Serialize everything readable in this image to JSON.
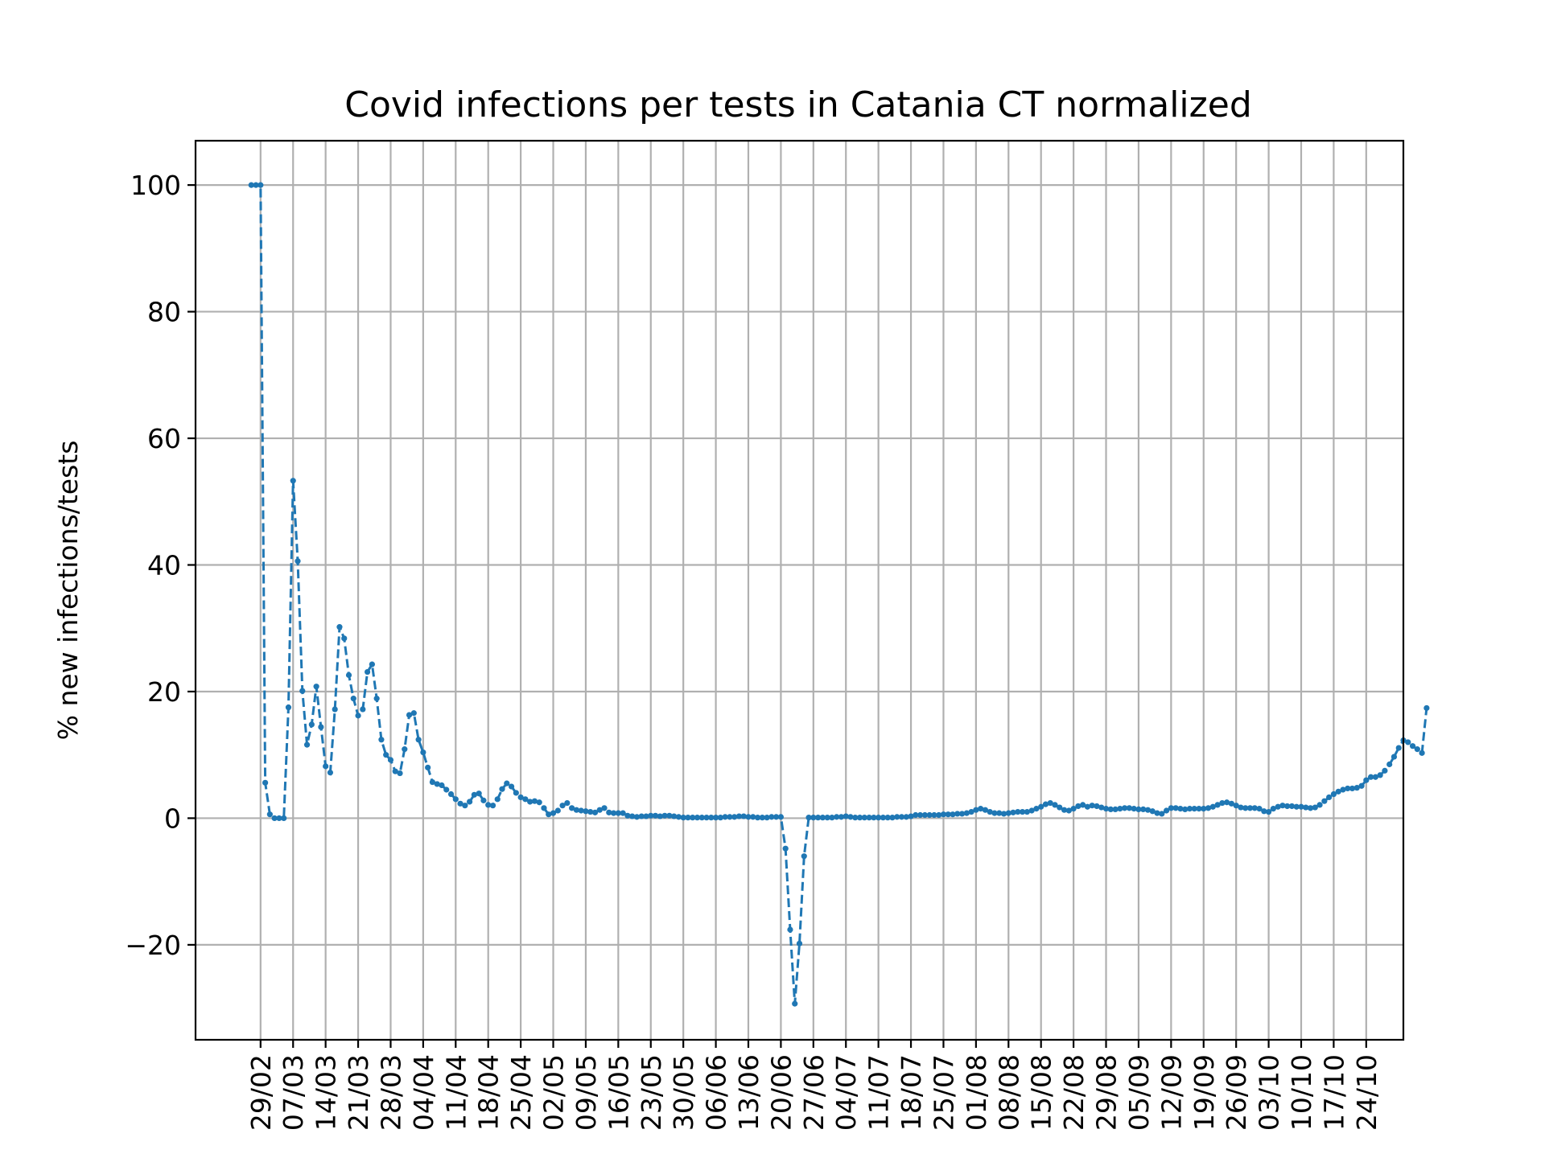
{
  "chart_data": {
    "type": "line",
    "title": "Covid infections per tests in Catania CT normalized",
    "xlabel": "",
    "ylabel": "% new infections/tests",
    "ylim": [
      -35,
      107
    ],
    "yticks": [
      -20,
      0,
      20,
      40,
      60,
      80,
      100
    ],
    "ytick_labels": [
      "−20",
      "0",
      "20",
      "40",
      "60",
      "80",
      "100"
    ],
    "xlim": [
      "2020-02-15",
      "2020-11-01"
    ],
    "xticks": [
      "2020-02-29",
      "2020-03-07",
      "2020-03-14",
      "2020-03-21",
      "2020-03-28",
      "2020-04-04",
      "2020-04-11",
      "2020-04-18",
      "2020-04-25",
      "2020-05-02",
      "2020-05-09",
      "2020-05-16",
      "2020-05-23",
      "2020-05-30",
      "2020-06-06",
      "2020-06-13",
      "2020-06-20",
      "2020-06-27",
      "2020-07-04",
      "2020-07-11",
      "2020-07-18",
      "2020-07-25",
      "2020-08-01",
      "2020-08-08",
      "2020-08-15",
      "2020-08-22",
      "2020-08-29",
      "2020-09-05",
      "2020-09-12",
      "2020-09-19",
      "2020-09-26",
      "2020-10-03",
      "2020-10-10",
      "2020-10-17",
      "2020-10-24"
    ],
    "xtick_labels": [
      "29/02",
      "07/03",
      "14/03",
      "21/03",
      "28/03",
      "04/04",
      "11/04",
      "18/04",
      "25/04",
      "02/05",
      "09/05",
      "16/05",
      "23/05",
      "30/05",
      "06/06",
      "13/06",
      "20/06",
      "27/06",
      "04/07",
      "11/07",
      "18/07",
      "25/07",
      "01/08",
      "08/08",
      "15/08",
      "22/08",
      "29/08",
      "05/09",
      "12/09",
      "19/09",
      "26/09",
      "03/10",
      "10/10",
      "17/10",
      "24/10"
    ],
    "grid": true,
    "series": [
      {
        "start_date": "2020-02-27",
        "color": "#1f77b4",
        "line_style": "dashed",
        "marker": "dot",
        "values": [
          100,
          100,
          100,
          5.6,
          0.6,
          0,
          0,
          0,
          17.5,
          53.3,
          40.6,
          20.1,
          11.6,
          14.8,
          20.8,
          14.4,
          8.2,
          7.2,
          17.2,
          30.2,
          28.4,
          22.6,
          18.9,
          16.2,
          17.2,
          23.1,
          24.3,
          18.9,
          12.4,
          10.0,
          9.2,
          7.4,
          7.1,
          10.9,
          16.3,
          16.6,
          12.4,
          10.4,
          8.0,
          5.7,
          5.4,
          5.2,
          4.5,
          3.8,
          3.0,
          2.3,
          2.0,
          2.6,
          3.7,
          3.9,
          2.8,
          2.1,
          2.0,
          3.0,
          4.6,
          5.5,
          5.0,
          4.0,
          3.3,
          3.0,
          2.6,
          2.7,
          2.5,
          1.6,
          0.6,
          0.8,
          1.2,
          2.0,
          2.4,
          1.6,
          1.3,
          1.2,
          1.1,
          1.0,
          0.9,
          1.3,
          1.6,
          0.9,
          0.8,
          0.8,
          0.8,
          0.4,
          0.3,
          0.2,
          0.3,
          0.3,
          0.4,
          0.4,
          0.3,
          0.4,
          0.4,
          0.3,
          0.2,
          0.1,
          0.1,
          0.1,
          0.1,
          0.1,
          0.1,
          0.1,
          0.1,
          0.1,
          0.2,
          0.2,
          0.2,
          0.3,
          0.3,
          0.2,
          0.2,
          0.1,
          0.1,
          0.1,
          0.2,
          0.2,
          0.2,
          -4.8,
          -17.6,
          -29.3,
          -19.8,
          -6.0,
          0.1,
          0.1,
          0.1,
          0.1,
          0.1,
          0.1,
          0.2,
          0.2,
          0.3,
          0.2,
          0.1,
          0.1,
          0.1,
          0.1,
          0.1,
          0.1,
          0.1,
          0.1,
          0.1,
          0.2,
          0.2,
          0.2,
          0.3,
          0.5,
          0.5,
          0.5,
          0.5,
          0.5,
          0.5,
          0.6,
          0.6,
          0.6,
          0.7,
          0.7,
          0.8,
          1.0,
          1.3,
          1.5,
          1.3,
          1.0,
          0.8,
          0.8,
          0.7,
          0.8,
          0.9,
          1.0,
          1.0,
          1.0,
          1.2,
          1.5,
          1.8,
          2.2,
          2.4,
          2.1,
          1.7,
          1.3,
          1.2,
          1.5,
          1.9,
          2.1,
          1.8,
          2.0,
          1.9,
          1.7,
          1.5,
          1.4,
          1.4,
          1.5,
          1.6,
          1.6,
          1.5,
          1.4,
          1.4,
          1.3,
          1.1,
          0.8,
          0.7,
          1.2,
          1.6,
          1.6,
          1.5,
          1.4,
          1.5,
          1.5,
          1.5,
          1.5,
          1.6,
          1.8,
          2.1,
          2.4,
          2.5,
          2.3,
          2.0,
          1.7,
          1.6,
          1.6,
          1.6,
          1.5,
          1.1,
          1.0,
          1.5,
          1.8,
          2.0,
          1.9,
          1.9,
          1.8,
          1.8,
          1.7,
          1.6,
          1.7,
          2.1,
          2.7,
          3.3,
          3.8,
          4.2,
          4.5,
          4.7,
          4.7,
          4.8,
          5.1,
          6.0,
          6.5,
          6.5,
          6.8,
          7.5,
          8.5,
          9.7,
          11.1,
          12.3,
          12.0,
          11.4,
          10.9,
          10.3,
          17.4
        ]
      }
    ]
  }
}
